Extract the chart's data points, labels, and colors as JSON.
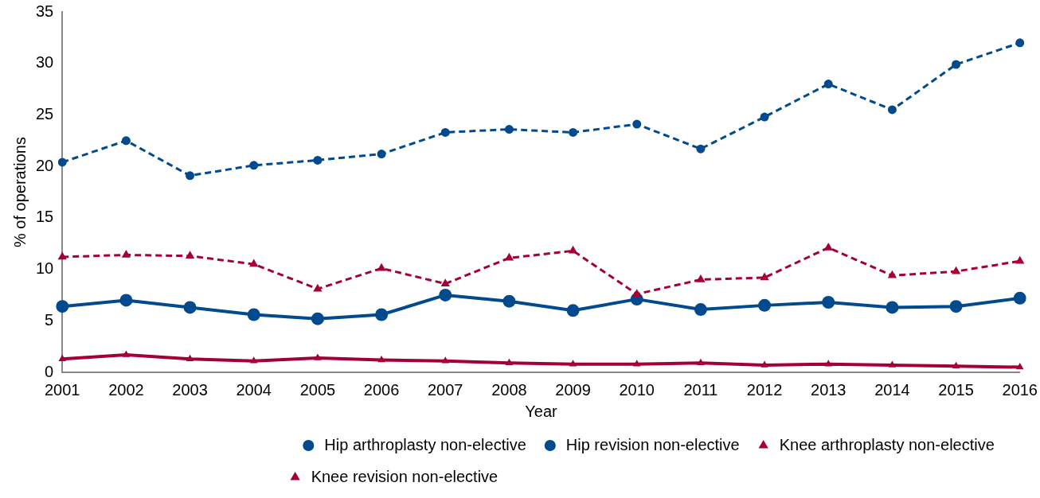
{
  "chart_data": {
    "type": "line",
    "xlabel": "Year",
    "ylabel": "% of operations",
    "categories": [
      "2001",
      "2002",
      "2003",
      "2004",
      "2005",
      "2006",
      "2007",
      "2008",
      "2009",
      "2010",
      "2011",
      "2012",
      "2013",
      "2014",
      "2015",
      "2016"
    ],
    "series": [
      {
        "name": "Hip arthroplasty non-elective",
        "color": "#004a8d",
        "marker": "circle",
        "line_style": "solid",
        "values": [
          6.4,
          7.0,
          6.3,
          5.6,
          5.2,
          5.6,
          7.5,
          6.9,
          6.0,
          7.1,
          6.1,
          6.5,
          6.8,
          6.3,
          6.4,
          7.2
        ]
      },
      {
        "name": "Hip revision non-elective",
        "color": "#004a8d",
        "marker": "circle",
        "line_style": "dashed",
        "values": [
          20.4,
          22.5,
          19.1,
          20.1,
          20.6,
          21.2,
          23.3,
          23.6,
          23.3,
          24.1,
          21.7,
          24.8,
          28.0,
          25.5,
          29.9,
          32.0
        ]
      },
      {
        "name": "Knee arthroplasty non-elective",
        "color": "#a50034",
        "marker": "triangle",
        "line_style": "solid",
        "values": [
          1.3,
          1.7,
          1.3,
          1.1,
          1.4,
          1.2,
          1.1,
          0.9,
          0.8,
          0.8,
          0.9,
          0.7,
          0.8,
          0.7,
          0.6,
          0.5
        ]
      },
      {
        "name": "Knee revision non-elective",
        "color": "#a50034",
        "marker": "triangle",
        "line_style": "dashed",
        "values": [
          11.2,
          11.4,
          11.3,
          10.5,
          8.1,
          10.1,
          8.6,
          11.1,
          11.8,
          7.6,
          9.0,
          9.2,
          12.1,
          9.4,
          9.8,
          10.8
        ]
      }
    ],
    "ylim": [
      0,
      35
    ],
    "yticks": [
      0,
      5,
      10,
      15,
      20,
      25,
      30,
      35
    ],
    "grid": false,
    "legend": "bottom"
  }
}
